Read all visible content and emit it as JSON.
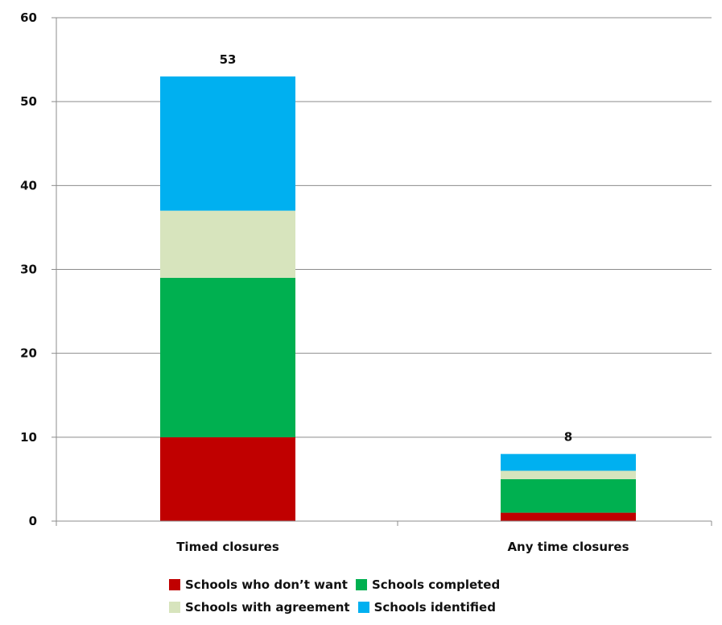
{
  "chart_data": {
    "type": "bar",
    "stacked": true,
    "categories": [
      "Timed closures",
      "Any time closures"
    ],
    "series": [
      {
        "name": "Schools who don’t want",
        "color": "#c00000",
        "values": [
          10,
          1
        ]
      },
      {
        "name": "Schools completed",
        "color": "#00b050",
        "values": [
          19,
          4
        ]
      },
      {
        "name": "Schools with agreement",
        "color": "#d7e4bd",
        "values": [
          8,
          1
        ]
      },
      {
        "name": "Schools identified",
        "color": "#00b0f0",
        "values": [
          16,
          2
        ]
      }
    ],
    "totals": [
      53,
      8
    ],
    "title": "",
    "xlabel": "",
    "ylabel": "",
    "ylim": [
      0,
      60
    ],
    "yticks": [
      0,
      10,
      20,
      30,
      40,
      50,
      60
    ],
    "grid": true,
    "legend_position": "bottom"
  }
}
